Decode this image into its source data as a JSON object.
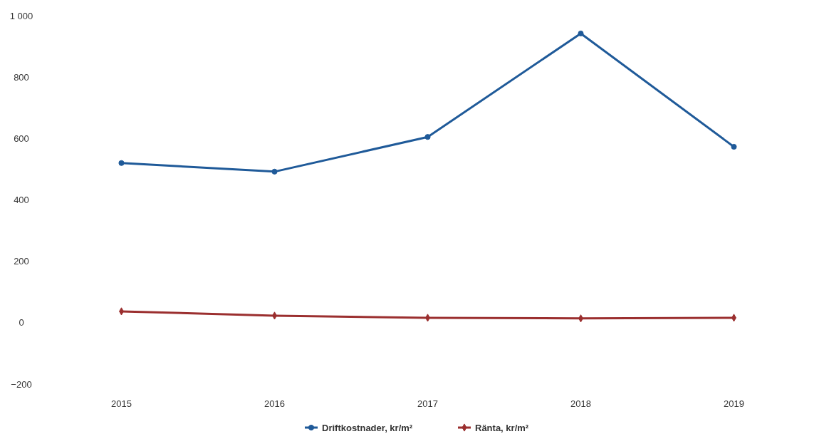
{
  "chart_data": {
    "type": "line",
    "categories": [
      "2015",
      "2016",
      "2017",
      "2018",
      "2019"
    ],
    "series": [
      {
        "name": "Driftkostnader, kr/m²",
        "color": "#1f5a99",
        "marker": "circle",
        "values": [
          520,
          492,
          605,
          942,
          573
        ]
      },
      {
        "name": "Ränta, kr/m²",
        "color": "#9b2f2f",
        "marker": "diamond",
        "values": [
          37,
          23,
          16,
          14,
          16
        ]
      }
    ],
    "ylim": [
      -200,
      1000
    ],
    "yticks": [
      {
        "value": -200,
        "label": "−200"
      },
      0,
      200,
      400,
      600,
      800,
      {
        "value": 1000,
        "label": "1 000"
      }
    ],
    "legend": "bottom",
    "line_style": "solid"
  }
}
